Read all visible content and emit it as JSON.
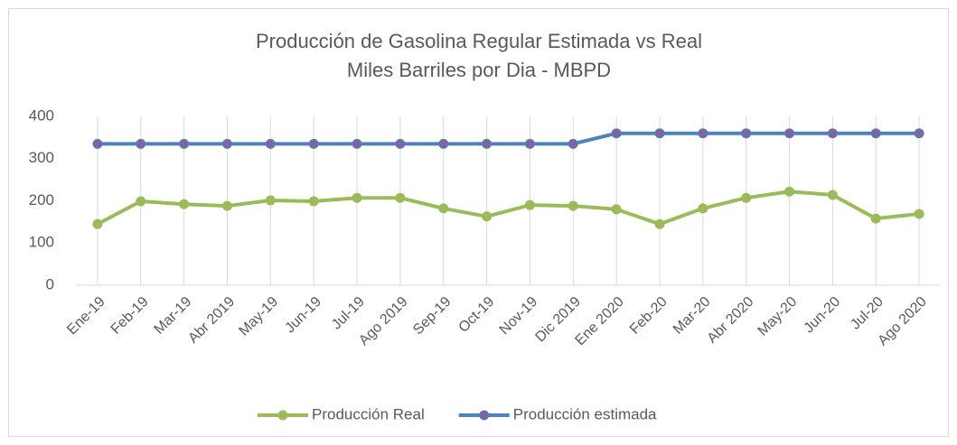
{
  "chart_data": {
    "type": "line",
    "title": "Producción de Gasolina Regular Estimada vs Real",
    "subtitle": "Miles Barriles por Dia - MBPD",
    "categories": [
      "Ene-19",
      "Feb-19",
      "Mar-19",
      "Abr 2019",
      "May-19",
      "Jun-19",
      "Jul-19",
      "Ago 2019",
      "Sep-19",
      "Oct-19",
      "Nov-19",
      "Dic 2019",
      "Ene 2020",
      "Feb-20",
      "Mar-20",
      "Abr 2020",
      "May-20",
      "Jun-20",
      "Jul-20",
      "Ago 2020"
    ],
    "series": [
      {
        "name": "Producción Real",
        "color": "#9bbb59",
        "marker_color": "#9bbb59",
        "values": [
          145,
          199,
          192,
          188,
          201,
          199,
          207,
          207,
          182,
          163,
          190,
          188,
          180,
          145,
          182,
          207,
          222,
          214,
          158,
          169
        ]
      },
      {
        "name": "Producción estimada",
        "color": "#4f81bd",
        "marker_color": "#8064a2",
        "values": [
          335,
          335,
          335,
          335,
          335,
          335,
          335,
          335,
          335,
          335,
          335,
          335,
          360,
          360,
          360,
          360,
          360,
          360,
          360,
          360
        ]
      }
    ],
    "ylim": [
      0,
      400
    ],
    "yticks": [
      0,
      100,
      200,
      300,
      400
    ],
    "grid": "x",
    "legend": "bottom"
  }
}
